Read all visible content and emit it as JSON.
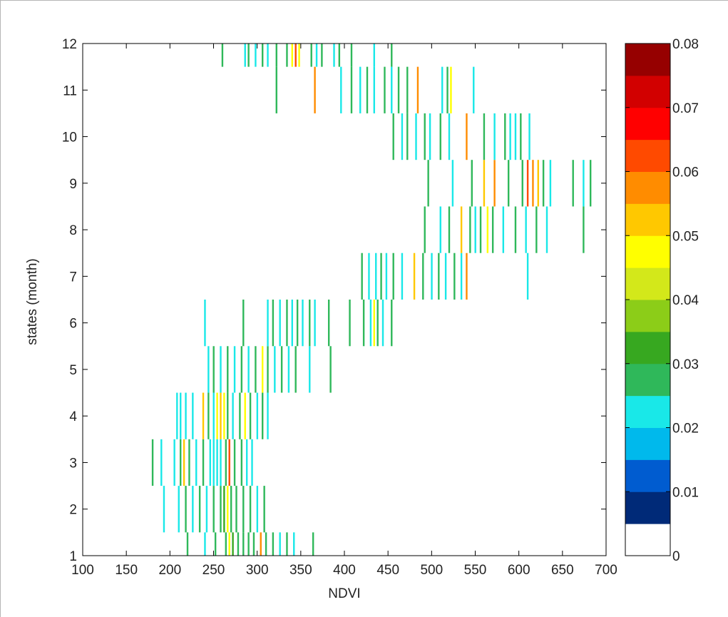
{
  "chart_data": {
    "type": "heatmap",
    "xlabel": "NDVI",
    "ylabel": "states (month)",
    "xlim": [
      100,
      700
    ],
    "ylim": [
      1,
      12
    ],
    "xticks": [
      100,
      150,
      200,
      250,
      300,
      350,
      400,
      450,
      500,
      550,
      600,
      650,
      700
    ],
    "yticks": [
      1,
      2,
      3,
      4,
      5,
      6,
      7,
      8,
      9,
      10,
      11,
      12
    ],
    "colorbar": {
      "range": [
        0,
        0.08
      ],
      "ticks": [
        "0",
        "0.01",
        "0.02",
        "0.03",
        "0.04",
        "0.05",
        "0.06",
        "0.07",
        "0.08"
      ],
      "colormap": [
        "#ffffff",
        "#002a78",
        "#005cd0",
        "#00b9ec",
        "#19e8e8",
        "#2fb85a",
        "#37a820",
        "#8ccd18",
        "#d3e81a",
        "#ffff00",
        "#ffc800",
        "#ff8c00",
        "#ff4a00",
        "#ff0000",
        "#d20000",
        "#960000"
      ]
    },
    "grid": false,
    "rows": [
      {
        "state": 1,
        "cells": [
          [
            220,
            0.026
          ],
          [
            240,
            0.024
          ],
          [
            252,
            0.026
          ],
          [
            264,
            0.028
          ],
          [
            268,
            0.045
          ],
          [
            272,
            0.03
          ],
          [
            278,
            0.028
          ],
          [
            284,
            0.026
          ],
          [
            290,
            0.028
          ],
          [
            296,
            0.026
          ],
          [
            304,
            0.055
          ],
          [
            310,
            0.026
          ],
          [
            318,
            0.026
          ],
          [
            326,
            0.024
          ],
          [
            334,
            0.026
          ],
          [
            342,
            0.024
          ],
          [
            364,
            0.026
          ]
        ]
      },
      {
        "state": 2,
        "cells": [
          [
            193,
            0.024
          ],
          [
            210,
            0.024
          ],
          [
            218,
            0.026
          ],
          [
            226,
            0.024
          ],
          [
            234,
            0.026
          ],
          [
            242,
            0.024
          ],
          [
            250,
            0.026
          ],
          [
            258,
            0.028
          ],
          [
            262,
            0.032
          ],
          [
            266,
            0.045
          ],
          [
            270,
            0.028
          ],
          [
            276,
            0.026
          ],
          [
            284,
            0.026
          ],
          [
            292,
            0.026
          ],
          [
            300,
            0.024
          ],
          [
            308,
            0.026
          ]
        ]
      },
      {
        "state": 3,
        "cells": [
          [
            180,
            0.026
          ],
          [
            190,
            0.024
          ],
          [
            205,
            0.024
          ],
          [
            212,
            0.026
          ],
          [
            216,
            0.05
          ],
          [
            222,
            0.026
          ],
          [
            230,
            0.024
          ],
          [
            238,
            0.026
          ],
          [
            246,
            0.02
          ],
          [
            250,
            0.022
          ],
          [
            254,
            0.02
          ],
          [
            258,
            0.024
          ],
          [
            264,
            0.026
          ],
          [
            268,
            0.06
          ],
          [
            274,
            0.026
          ],
          [
            282,
            0.026
          ],
          [
            288,
            0.024
          ],
          [
            294,
            0.024
          ]
        ]
      },
      {
        "state": 4,
        "cells": [
          [
            208,
            0.02
          ],
          [
            212,
            0.02
          ],
          [
            218,
            0.022
          ],
          [
            226,
            0.024
          ],
          [
            238,
            0.05
          ],
          [
            244,
            0.026
          ],
          [
            250,
            0.024
          ],
          [
            254,
            0.045
          ],
          [
            258,
            0.05
          ],
          [
            262,
            0.045
          ],
          [
            266,
            0.026
          ],
          [
            272,
            0.024
          ],
          [
            280,
            0.026
          ],
          [
            286,
            0.045
          ],
          [
            292,
            0.026
          ],
          [
            300,
            0.024
          ],
          [
            306,
            0.026
          ],
          [
            312,
            0.024
          ]
        ]
      },
      {
        "state": 5,
        "cells": [
          [
            244,
            0.024
          ],
          [
            250,
            0.026
          ],
          [
            258,
            0.024
          ],
          [
            266,
            0.026
          ],
          [
            274,
            0.024
          ],
          [
            282,
            0.026
          ],
          [
            290,
            0.024
          ],
          [
            298,
            0.026
          ],
          [
            306,
            0.045
          ],
          [
            312,
            0.026
          ],
          [
            320,
            0.024
          ],
          [
            328,
            0.026
          ],
          [
            336,
            0.024
          ],
          [
            344,
            0.026
          ],
          [
            360,
            0.024
          ],
          [
            384,
            0.026
          ]
        ]
      },
      {
        "state": 6,
        "cells": [
          [
            240,
            0.024
          ],
          [
            284,
            0.026
          ],
          [
            312,
            0.024
          ],
          [
            318,
            0.026
          ],
          [
            326,
            0.024
          ],
          [
            334,
            0.026
          ],
          [
            340,
            0.024
          ],
          [
            346,
            0.026
          ],
          [
            352,
            0.024
          ],
          [
            360,
            0.026
          ],
          [
            366,
            0.024
          ],
          [
            382,
            0.026
          ],
          [
            406,
            0.026
          ],
          [
            422,
            0.026
          ],
          [
            430,
            0.022
          ],
          [
            434,
            0.045
          ],
          [
            438,
            0.026
          ],
          [
            444,
            0.024
          ],
          [
            454,
            0.026
          ]
        ]
      },
      {
        "state": 7,
        "cells": [
          [
            420,
            0.026
          ],
          [
            428,
            0.024
          ],
          [
            436,
            0.022
          ],
          [
            442,
            0.026
          ],
          [
            448,
            0.024
          ],
          [
            456,
            0.026
          ],
          [
            466,
            0.024
          ],
          [
            480,
            0.05
          ],
          [
            490,
            0.026
          ],
          [
            500,
            0.024
          ],
          [
            508,
            0.026
          ],
          [
            516,
            0.024
          ],
          [
            526,
            0.026
          ],
          [
            534,
            0.024
          ],
          [
            540,
            0.055
          ],
          [
            610,
            0.024
          ]
        ]
      },
      {
        "state": 8,
        "cells": [
          [
            492,
            0.026
          ],
          [
            510,
            0.024
          ],
          [
            520,
            0.026
          ],
          [
            534,
            0.05
          ],
          [
            544,
            0.026
          ],
          [
            550,
            0.022
          ],
          [
            556,
            0.026
          ],
          [
            564,
            0.045
          ],
          [
            570,
            0.026
          ],
          [
            582,
            0.024
          ],
          [
            596,
            0.026
          ],
          [
            608,
            0.024
          ],
          [
            620,
            0.026
          ],
          [
            632,
            0.024
          ],
          [
            674,
            0.026
          ]
        ]
      },
      {
        "state": 9,
        "cells": [
          [
            496,
            0.026
          ],
          [
            524,
            0.024
          ],
          [
            546,
            0.026
          ],
          [
            560,
            0.05
          ],
          [
            572,
            0.055
          ],
          [
            588,
            0.026
          ],
          [
            604,
            0.026
          ],
          [
            610,
            0.06
          ],
          [
            616,
            0.055
          ],
          [
            622,
            0.05
          ],
          [
            628,
            0.026
          ],
          [
            636,
            0.024
          ],
          [
            662,
            0.026
          ],
          [
            674,
            0.024
          ],
          [
            682,
            0.026
          ]
        ]
      },
      {
        "state": 10,
        "cells": [
          [
            456,
            0.026
          ],
          [
            466,
            0.024
          ],
          [
            472,
            0.026
          ],
          [
            482,
            0.024
          ],
          [
            492,
            0.026
          ],
          [
            498,
            0.024
          ],
          [
            510,
            0.026
          ],
          [
            520,
            0.024
          ],
          [
            540,
            0.055
          ],
          [
            560,
            0.026
          ],
          [
            572,
            0.024
          ],
          [
            584,
            0.026
          ],
          [
            590,
            0.022
          ],
          [
            596,
            0.024
          ],
          [
            602,
            0.026
          ],
          [
            612,
            0.024
          ]
        ]
      },
      {
        "state": 11,
        "cells": [
          [
            322,
            0.026
          ],
          [
            366,
            0.055
          ],
          [
            396,
            0.024
          ],
          [
            408,
            0.026
          ],
          [
            418,
            0.024
          ],
          [
            426,
            0.026
          ],
          [
            434,
            0.024
          ],
          [
            446,
            0.026
          ],
          [
            454,
            0.024
          ],
          [
            462,
            0.026
          ],
          [
            472,
            0.026
          ],
          [
            484,
            0.055
          ],
          [
            512,
            0.024
          ],
          [
            518,
            0.026
          ],
          [
            522,
            0.045
          ],
          [
            548,
            0.024
          ]
        ]
      },
      {
        "state": 12,
        "cells": [
          [
            260,
            0.026
          ],
          [
            286,
            0.024
          ],
          [
            290,
            0.026
          ],
          [
            298,
            0.024
          ],
          [
            306,
            0.026
          ],
          [
            312,
            0.024
          ],
          [
            322,
            0.026
          ],
          [
            334,
            0.026
          ],
          [
            340,
            0.045
          ],
          [
            344,
            0.06
          ],
          [
            348,
            0.045
          ],
          [
            362,
            0.026
          ],
          [
            368,
            0.024
          ],
          [
            374,
            0.026
          ],
          [
            388,
            0.024
          ],
          [
            394,
            0.026
          ],
          [
            408,
            0.026
          ],
          [
            434,
            0.024
          ],
          [
            454,
            0.026
          ]
        ]
      }
    ]
  }
}
